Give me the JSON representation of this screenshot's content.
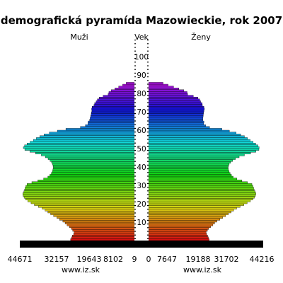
{
  "chart_data": {
    "type": "bar",
    "title": "demografická pyramída Mazowieckie, rok 2007",
    "left_label": "Muži",
    "center_label": "Vek",
    "right_label": "Ženy",
    "left_axis_ticks": [
      "44671",
      "32157",
      "19643",
      "8102",
      "9"
    ],
    "right_axis_ticks": [
      "0",
      "7647",
      "19188",
      "31702",
      "44216"
    ],
    "age_ticks": [
      10,
      20,
      30,
      40,
      50,
      60,
      70,
      80,
      90,
      100
    ],
    "source_left": "www.iz.sk",
    "source_right": "www.iz.sk",
    "xlim": [
      0,
      44671
    ],
    "ylim": [
      0,
      110
    ],
    "series": [
      {
        "name": "Muži",
        "values": [
          25500,
          25100,
          24800,
          24300,
          24100,
          24700,
          25200,
          26000,
          26900,
          27700,
          28600,
          29900,
          31000,
          32300,
          33500,
          34600,
          35700,
          36900,
          38400,
          40000,
          41300,
          42600,
          43500,
          44100,
          44500,
          44600,
          44200,
          43900,
          43700,
          43400,
          42900,
          41000,
          38600,
          36300,
          34600,
          33800,
          33200,
          32800,
          32600,
          32400,
          32500,
          32700,
          33100,
          33700,
          34500,
          35600,
          37200,
          39500,
          41800,
          43800,
          44400,
          43900,
          42900,
          41700,
          40400,
          39200,
          37800,
          36100,
          34000,
          30800,
          27400,
          21600,
          19600,
          18600,
          18500,
          17900,
          17700,
          17500,
          17300,
          17200,
          17000,
          17100,
          16900,
          16200,
          15900,
          15300,
          14800,
          14100,
          12500,
          10500,
          10200,
          9300,
          7800,
          6300,
          4700,
          3300,
          0,
          0,
          0,
          0,
          0,
          0,
          0,
          0,
          0,
          0,
          0,
          0,
          0,
          0,
          0,
          0,
          0,
          0,
          0,
          0,
          0
        ]
      },
      {
        "name": "Ženy",
        "values": [
          24200,
          23900,
          23600,
          23200,
          23000,
          23500,
          24000,
          24800,
          25700,
          26400,
          27300,
          28500,
          29600,
          30800,
          31900,
          33000,
          34000,
          35200,
          36600,
          38100,
          39400,
          40700,
          41700,
          42300,
          42700,
          42900,
          42600,
          42200,
          42000,
          41700,
          41300,
          39500,
          37300,
          35300,
          33800,
          33100,
          32600,
          32200,
          31900,
          31800,
          31900,
          32200,
          32800,
          33600,
          34700,
          36200,
          38300,
          40800,
          42900,
          44100,
          44200,
          43700,
          42800,
          41800,
          40600,
          39500,
          38300,
          36800,
          35000,
          32300,
          29300,
          24400,
          22800,
          22000,
          22100,
          21700,
          21700,
          21800,
          21900,
          22000,
          22100,
          22300,
          22100,
          21500,
          21400,
          20800,
          20400,
          19700,
          17900,
          15600,
          15400,
          14100,
          12100,
          10000,
          7800,
          5800,
          0,
          0,
          0,
          0,
          0,
          0,
          0,
          0,
          0,
          0,
          0,
          0,
          0,
          0,
          0,
          0,
          0,
          0,
          0,
          0,
          0
        ]
      }
    ],
    "grid": false,
    "legend": "none"
  }
}
